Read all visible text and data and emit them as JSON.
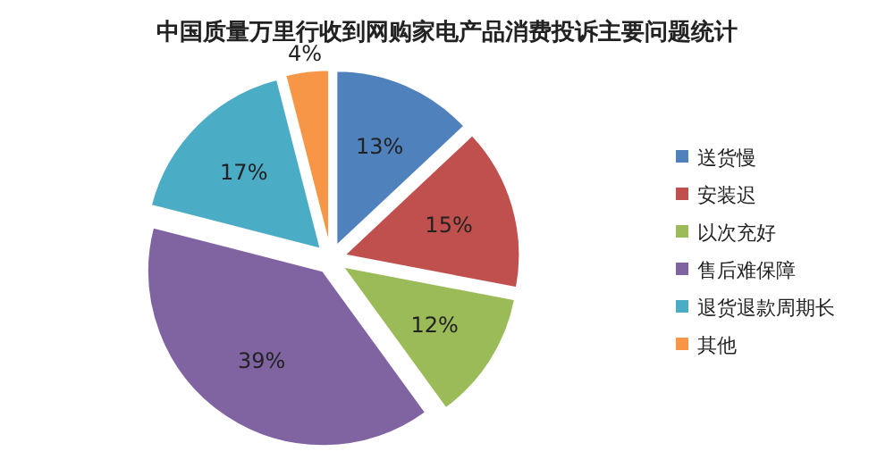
{
  "chart_data": {
    "type": "pie",
    "title": "中国质量万里行收到网购家电产品消费投诉主要问题统计",
    "categories": [
      "送货慢",
      "安装迟",
      "以次充好",
      "售后难保障",
      "退货退款周期长",
      "其他"
    ],
    "values": [
      13,
      15,
      12,
      39,
      17,
      4
    ],
    "colors": [
      "#4f81bd",
      "#c0504d",
      "#9bbb59",
      "#8064a2",
      "#4bacc6",
      "#f79646"
    ],
    "value_labels": [
      "13%",
      "15%",
      "12%",
      "39%",
      "17%",
      "4%"
    ],
    "legend": "right"
  }
}
